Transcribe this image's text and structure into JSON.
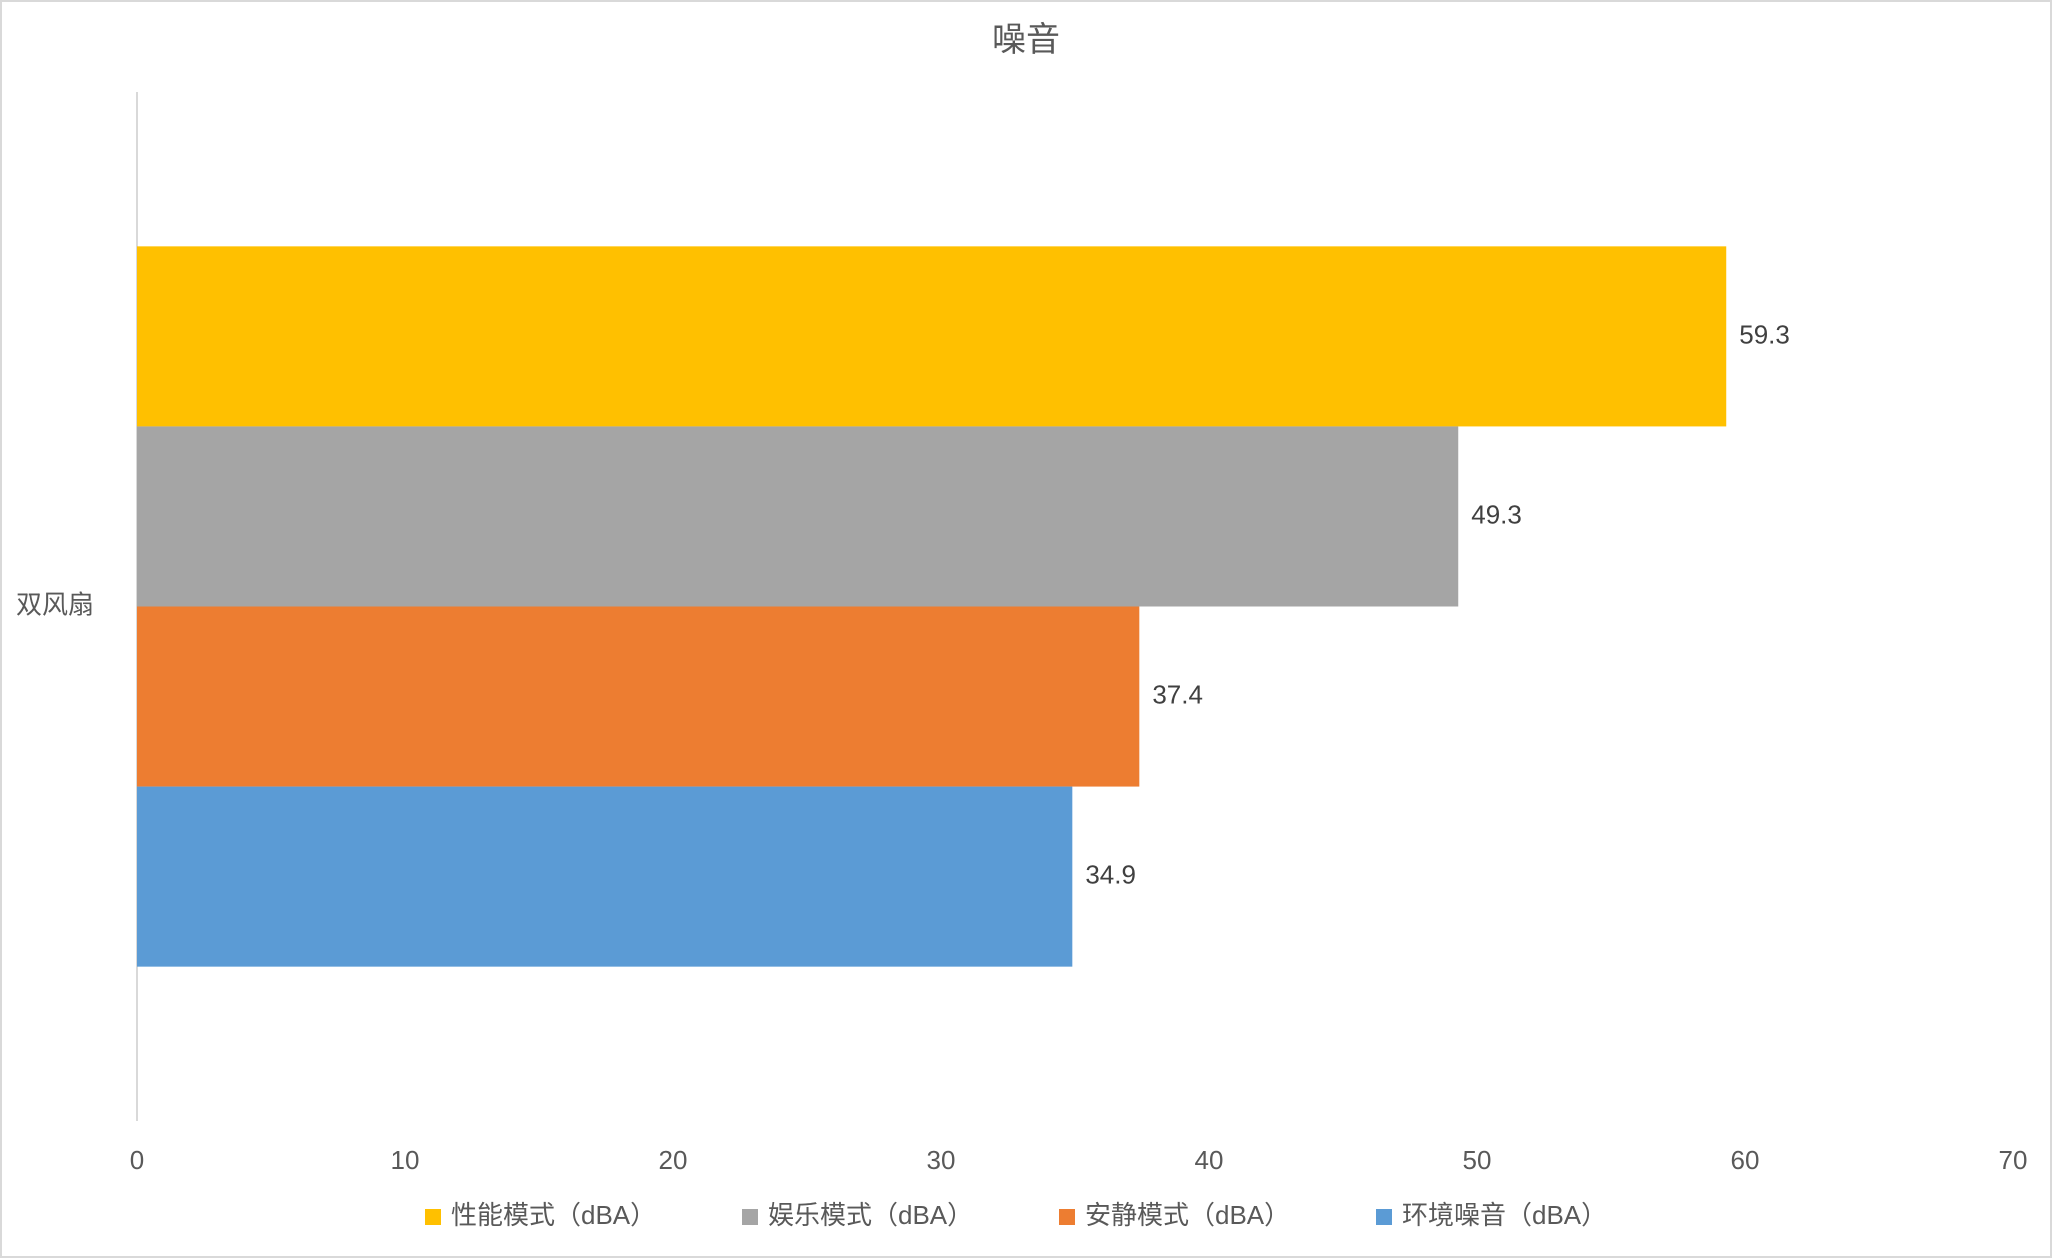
{
  "chart_data": {
    "type": "barh",
    "title": "噪音",
    "categories": [
      "双风扇"
    ],
    "series": [
      {
        "name": "性能模式（dBA）",
        "color": "#FFC000",
        "values": [
          59.3
        ]
      },
      {
        "name": "娱乐模式（dBA）",
        "color": "#A5A5A5",
        "values": [
          49.3
        ]
      },
      {
        "name": "安静模式（dBA）",
        "color": "#ED7D31",
        "values": [
          37.4
        ]
      },
      {
        "name": "环境噪音（dBA）",
        "color": "#5B9BD5",
        "values": [
          34.9
        ]
      }
    ],
    "xlim": [
      0,
      70
    ],
    "xticks": [
      0,
      10,
      20,
      30,
      40,
      50,
      60,
      70
    ],
    "grid": false,
    "legend": "bottom"
  }
}
